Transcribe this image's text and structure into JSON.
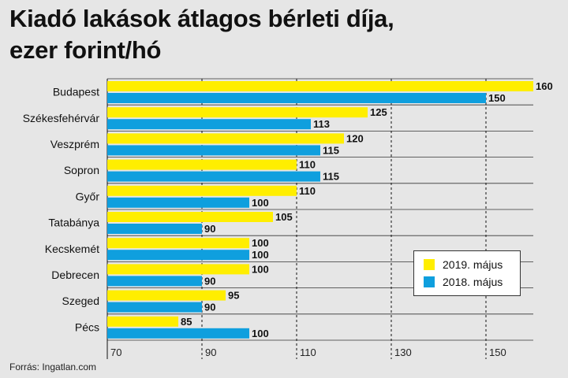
{
  "title_lines": [
    "Kiadó lakások átlagos bérleti díja,",
    "ezer forint/hó"
  ],
  "source": "Forrás: Ingatlan.com",
  "colors": {
    "series_2019": "#ffee00",
    "series_2018": "#0f9fde",
    "grid": "#111111",
    "background": "#e6e6e6"
  },
  "legend": [
    {
      "label": "2019. május",
      "color": "#ffee00"
    },
    {
      "label": "2018. május",
      "color": "#0f9fde"
    }
  ],
  "chart_data": {
    "type": "bar",
    "orientation": "horizontal",
    "categories": [
      "Budapest",
      "Székesfehérvár",
      "Veszprém",
      "Sopron",
      "Győr",
      "Tatabánya",
      "Kecskemét",
      "Debrecen",
      "Szeged",
      "Pécs"
    ],
    "series": [
      {
        "name": "2019. május",
        "color": "#ffee00",
        "values": [
          160,
          125,
          120,
          110,
          110,
          105,
          100,
          100,
          95,
          85
        ]
      },
      {
        "name": "2018. május",
        "color": "#0f9fde",
        "values": [
          150,
          113,
          115,
          115,
          100,
          90,
          100,
          90,
          90,
          100
        ]
      }
    ],
    "xlim": [
      70,
      160
    ],
    "xticks": [
      70,
      90,
      110,
      130,
      150
    ],
    "title": "Kiadó lakások átlagos bérleti díja, ezer forint/hó",
    "xlabel": "",
    "ylabel": "",
    "grid": true,
    "legend_position": "bottom-right"
  }
}
